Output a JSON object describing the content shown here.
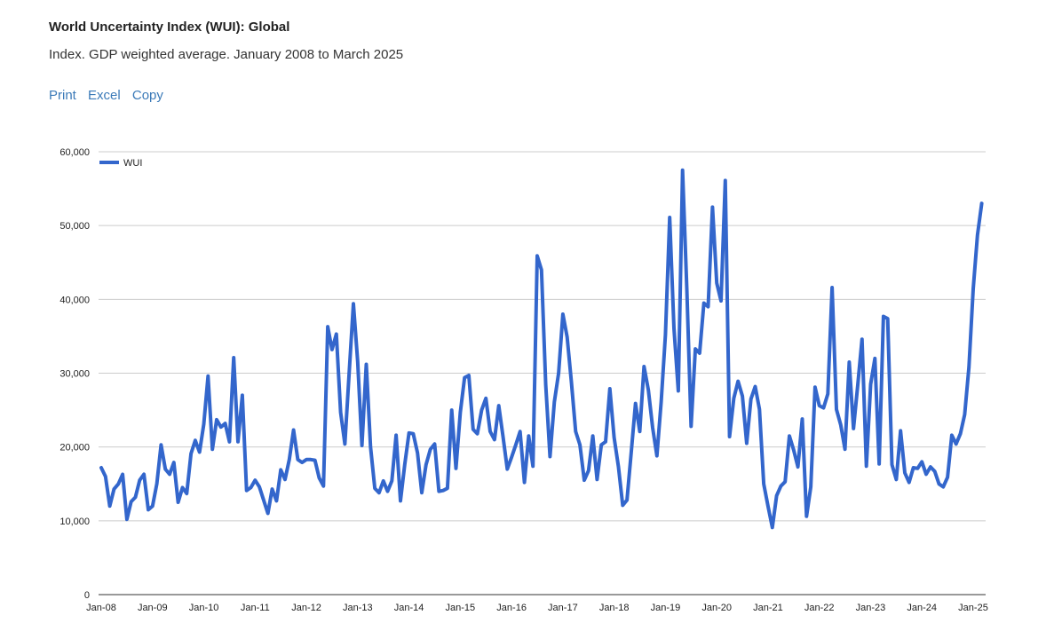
{
  "header": {
    "title": "World Uncertainty Index (WUI): Global",
    "subtitle": "Index. GDP weighted average. January 2008 to March 2025"
  },
  "toolbar": {
    "print": "Print",
    "excel": "Excel",
    "copy": "Copy"
  },
  "colors": {
    "series": "#3366cc",
    "grid": "#cccccc",
    "link": "#3b7ab8"
  },
  "chart_data": {
    "type": "line",
    "title": "World Uncertainty Index (WUI): Global",
    "subtitle": "Index. GDP weighted average. January 2008 to March 2025",
    "xlabel": "",
    "ylabel": "",
    "x_start": "2008-01",
    "frequency": "monthly",
    "ylim": [
      0,
      60000
    ],
    "yticks": [
      "0",
      "10,000",
      "20,000",
      "30,000",
      "40,000",
      "50,000",
      "60,000"
    ],
    "xticks": [
      "Jan-08",
      "Jan-09",
      "Jan-10",
      "Jan-11",
      "Jan-12",
      "Jan-13",
      "Jan-14",
      "Jan-15",
      "Jan-16",
      "Jan-17",
      "Jan-18",
      "Jan-19",
      "Jan-20",
      "Jan-21",
      "Jan-22",
      "Jan-23",
      "Jan-24",
      "Jan-25"
    ],
    "legend": {
      "position": "top-left",
      "entries": [
        "WUI"
      ]
    },
    "grid": true,
    "series": [
      {
        "name": "WUI",
        "values": [
          17200,
          16000,
          12000,
          14300,
          15000,
          16300,
          10200,
          12600,
          13200,
          15500,
          16300,
          11500,
          12000,
          15000,
          20300,
          17000,
          16300,
          17900,
          12500,
          14500,
          13700,
          19100,
          20900,
          19300,
          23100,
          29600,
          19700,
          23700,
          22700,
          23200,
          20700,
          32100,
          20700,
          27000,
          14100,
          14500,
          15500,
          14600,
          12800,
          11000,
          14300,
          12700,
          16900,
          15600,
          18300,
          22300,
          18300,
          17900,
          18300,
          18300,
          18200,
          15800,
          14700,
          36300,
          33200,
          35300,
          24700,
          20400,
          30000,
          39400,
          31600,
          20200,
          31200,
          20000,
          14400,
          13800,
          15400,
          14000,
          15400,
          21600,
          12700,
          17600,
          21900,
          21800,
          19200,
          13800,
          17600,
          19700,
          20400,
          14000,
          14100,
          14400,
          25000,
          17100,
          24700,
          29400,
          29700,
          22400,
          21800,
          25000,
          26600,
          22100,
          21000,
          25600,
          21400,
          17000,
          18600,
          20300,
          22100,
          15200,
          21500,
          17400,
          45900,
          44000,
          28400,
          18700,
          26100,
          30000,
          38000,
          34900,
          28800,
          22100,
          20300,
          15500,
          16800,
          21500,
          15600,
          20300,
          20700,
          27900,
          21300,
          17300,
          12100,
          12800,
          19300,
          25900,
          22100,
          30900,
          27700,
          22600,
          18800,
          26100,
          35200,
          51100,
          36100,
          27600,
          57500,
          41400,
          22800,
          33300,
          32700,
          39500,
          39000,
          52500,
          42200,
          39800,
          56100,
          21400,
          26600,
          28900,
          26900,
          20500,
          26500,
          28200,
          25100,
          15000,
          12000,
          9100,
          13400,
          14700,
          15300,
          21500,
          19600,
          17300,
          23800,
          10600,
          14600,
          28100,
          25600,
          25300,
          27200,
          41600,
          25100,
          23000,
          19700,
          31500,
          22500,
          28400,
          34600,
          17400,
          28500,
          32000,
          17700,
          37700,
          37400,
          17600,
          15600,
          22200,
          16500,
          15200,
          17200,
          17100,
          18000,
          16300,
          17300,
          16700,
          15000,
          14600,
          15900,
          21600,
          20400,
          21800,
          24400,
          30800,
          41400,
          48700,
          53000
        ]
      }
    ]
  }
}
